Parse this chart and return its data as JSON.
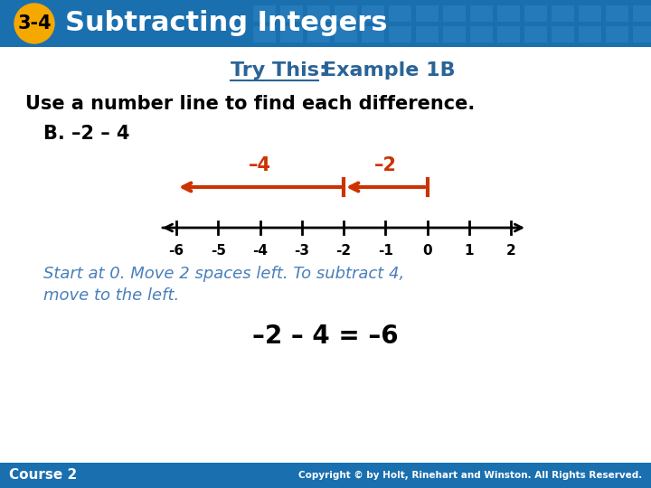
{
  "header_bg_color": "#1a6faf",
  "header_text": "Subtracting Integers",
  "header_badge_text": "3-4",
  "header_badge_bg": "#f5a800",
  "header_badge_fg": "#000000",
  "header_text_color": "#ffffff",
  "body_bg_color": "#ffffff",
  "title_color": "#2a6496",
  "instruction_text": "Use a number line to find each difference.",
  "instruction_color": "#000000",
  "problem_text": "B. –2 – 4",
  "problem_color": "#000000",
  "arrow1_label": "–4",
  "arrow2_label": "–2",
  "arrow_color": "#cc3300",
  "number_line_min": -6,
  "number_line_max": 2,
  "number_line_color": "#000000",
  "italic_text_line1": "Start at 0. Move 2 spaces left. To subtract 4,",
  "italic_text_line2": "move to the left.",
  "italic_color": "#4a7fba",
  "equation_text": "–2 – 4 = –6",
  "equation_color": "#000000",
  "footer_bg": "#1a6faf",
  "footer_left": "Course 2",
  "footer_right": "Copyright © by Holt, Rinehart and Winston. All Rights Reserved.",
  "footer_color": "#ffffff"
}
